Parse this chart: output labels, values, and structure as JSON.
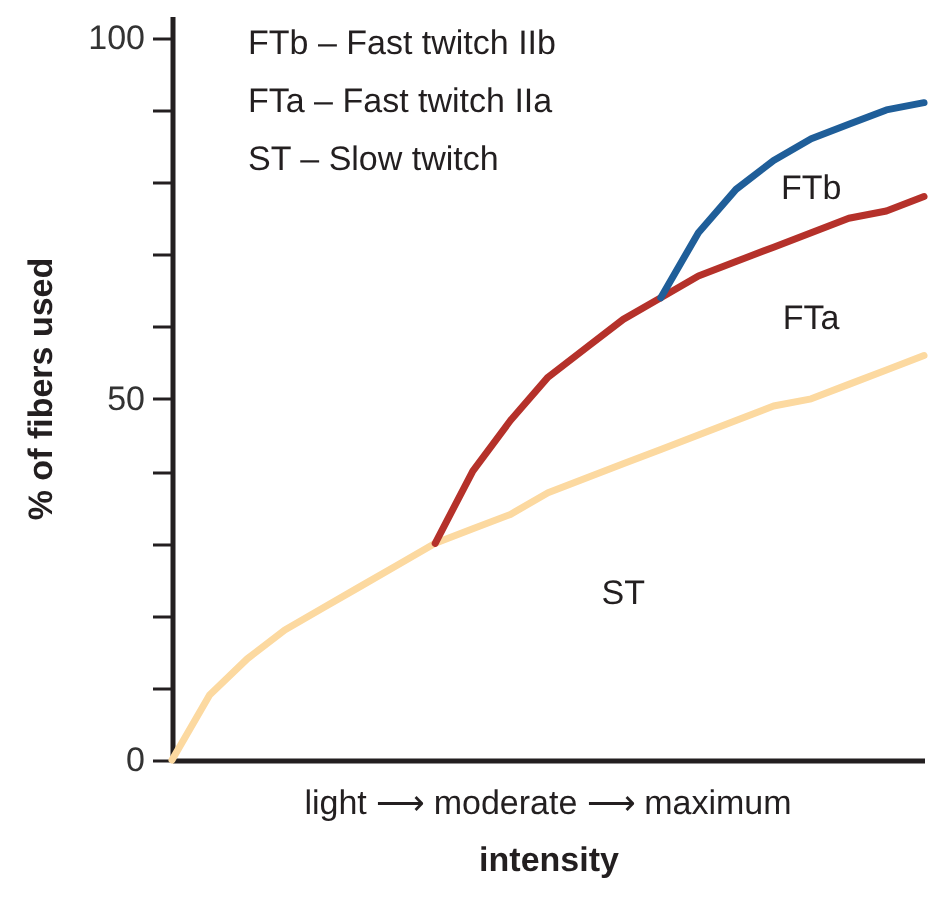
{
  "chart_data": {
    "type": "line",
    "xlabel": "intensity",
    "ylabel": "% of fibers used",
    "categories": [
      null,
      null,
      null,
      null,
      null,
      null,
      null,
      null,
      null,
      null,
      null,
      null,
      null,
      null,
      null,
      null,
      null,
      null,
      null,
      null,
      null
    ],
    "series": [
      {
        "name": "ST",
        "color": "#fcd9a0",
        "values": [
          0,
          9,
          14,
          18,
          21,
          24,
          27,
          30,
          32,
          34,
          37,
          39,
          41,
          43,
          45,
          47,
          49,
          50,
          52,
          54,
          56
        ]
      },
      {
        "name": "FTa",
        "color": "#b5312a",
        "values": [
          null,
          null,
          null,
          null,
          null,
          null,
          null,
          30,
          40,
          47,
          53,
          57,
          61,
          64,
          67,
          69,
          71,
          73,
          75,
          76,
          78
        ]
      },
      {
        "name": "FTb",
        "color": "#1f5e99",
        "values": [
          null,
          null,
          null,
          null,
          null,
          null,
          null,
          null,
          null,
          null,
          null,
          null,
          null,
          64,
          73,
          79,
          83,
          86,
          88,
          90,
          91
        ]
      }
    ],
    "ylim": [
      0,
      103
    ],
    "yticks": [
      0,
      {
        "value": 10,
        "label": null
      },
      {
        "value": 20,
        "label": null
      },
      {
        "value": 30,
        "label": null
      },
      {
        "value": 40,
        "label": null
      },
      50,
      {
        "value": 60,
        "label": null
      },
      {
        "value": 70,
        "label": null
      },
      {
        "value": 80,
        "label": null
      },
      {
        "value": 90,
        "label": null
      },
      100
    ],
    "grid": false,
    "annotations": [
      "FTb – Fast twitch IIb",
      "FTa – Fast twitch IIa",
      "ST   – Slow twitch",
      "light ⟶ moderate ⟶ maximum"
    ]
  }
}
